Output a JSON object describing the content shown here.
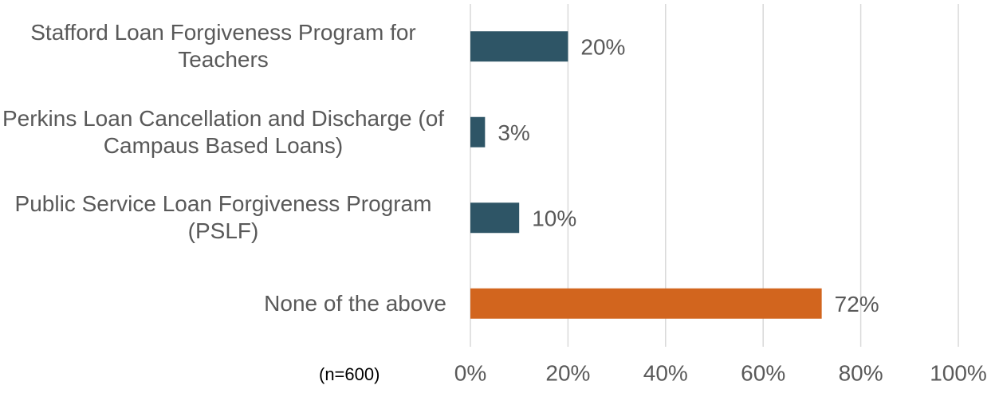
{
  "chart_data": {
    "type": "bar",
    "orientation": "horizontal",
    "categories": [
      "Stafford Loan Forgiveness Program for Teachers",
      "Perkins Loan Cancellation and Discharge (of Campaus Based Loans)",
      "Public Service Loan Forgiveness Program (PSLF)",
      "None of the above"
    ],
    "values": [
      20,
      3,
      10,
      72
    ],
    "value_labels": [
      "20%",
      "3%",
      "10%",
      "72%"
    ],
    "colors": [
      "#2e5566",
      "#2e5566",
      "#2e5566",
      "#d2651e"
    ],
    "xlim": [
      0,
      100
    ],
    "xticks": [
      {
        "value": 0,
        "label": "0%"
      },
      {
        "value": 20,
        "label": "20%"
      },
      {
        "value": 40,
        "label": "40%"
      },
      {
        "value": 60,
        "label": "60%"
      },
      {
        "value": 80,
        "label": "80%"
      },
      {
        "value": 100,
        "label": "100%"
      }
    ],
    "grid": true,
    "note": "(n=600)"
  }
}
